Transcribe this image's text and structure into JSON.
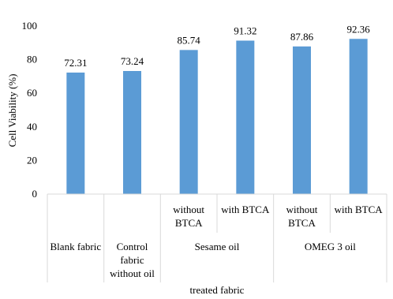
{
  "chart_data": {
    "type": "bar",
    "title": "",
    "ylabel": "Cell Viability (%)",
    "xlabel": "treated fabric",
    "ylim": [
      0,
      100
    ],
    "yticks": [
      0,
      20,
      40,
      60,
      80,
      100
    ],
    "grid": false,
    "bar_color": "#5B9BD5",
    "bars": [
      {
        "value": 72.31,
        "label": "72.31",
        "sub_label": "Blank fabric",
        "group": ""
      },
      {
        "value": 73.24,
        "label": "73.24",
        "sub_label": "Control fabric without oil",
        "group": ""
      },
      {
        "value": 85.74,
        "label": "85.74",
        "sub_label": "without BTCA",
        "group": "Sesame oil"
      },
      {
        "value": 91.32,
        "label": "91.32",
        "sub_label": "with BTCA",
        "group": "Sesame oil"
      },
      {
        "value": 87.86,
        "label": "87.86",
        "sub_label": "without BTCA",
        "group": "OMEG 3 oil"
      },
      {
        "value": 92.36,
        "label": "92.36",
        "sub_label": "with BTCA",
        "group": "OMEG 3 oil"
      }
    ],
    "groups": [
      "Sesame oil",
      "OMEG 3 oil"
    ]
  }
}
